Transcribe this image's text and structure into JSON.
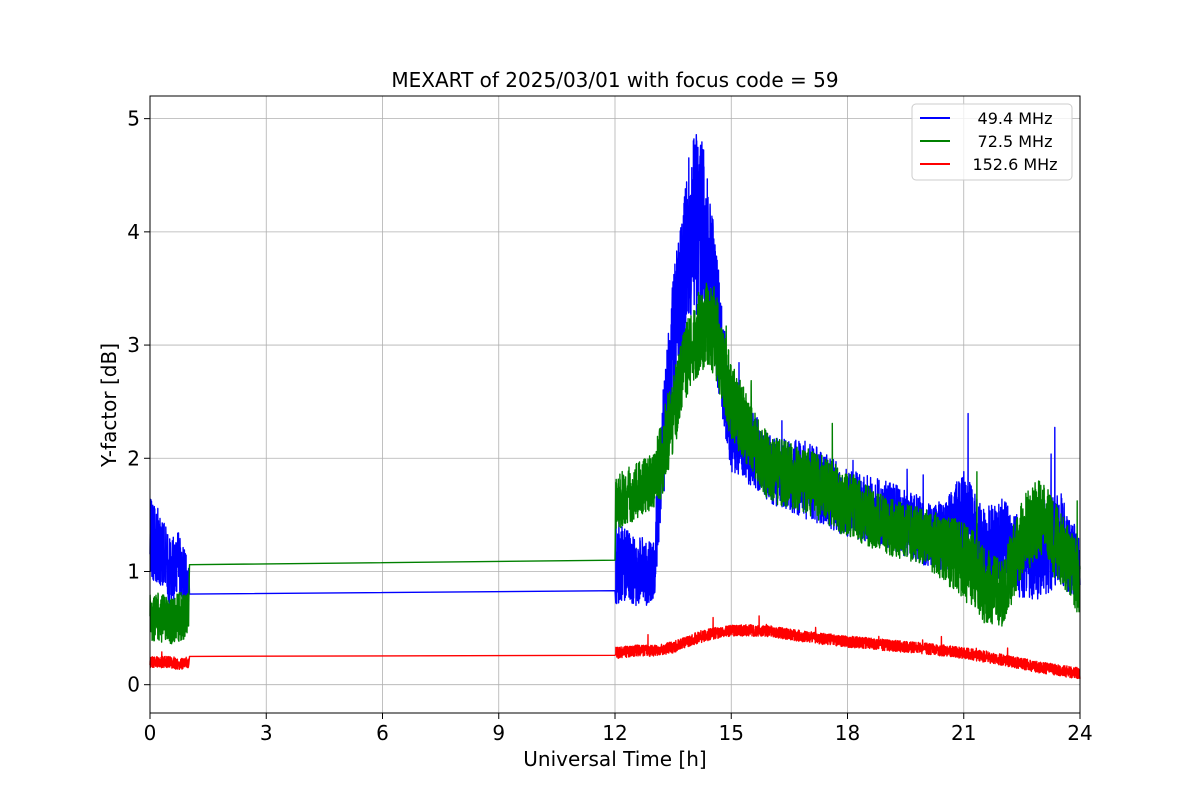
{
  "chart_data": {
    "type": "line",
    "title": "MEXART of 2025/03/01 with focus code = 59",
    "xlabel": "Universal Time [h]",
    "ylabel": "Y-factor [dB]",
    "xlim": [
      0,
      24
    ],
    "ylim": [
      -0.25,
      5.2
    ],
    "xticks": [
      0,
      3,
      6,
      9,
      12,
      15,
      18,
      21,
      24
    ],
    "yticks": [
      0,
      1,
      2,
      3,
      4,
      5
    ],
    "xtick_labels": [
      "0",
      "3",
      "6",
      "9",
      "12",
      "15",
      "18",
      "21",
      "24"
    ],
    "ytick_labels": [
      "0",
      "1",
      "2",
      "3",
      "4",
      "5"
    ],
    "grid": true,
    "legend_position": "top-right",
    "series": [
      {
        "name": " 49.4 MHz",
        "color": "#0000ff",
        "x": [
          0,
          0.25,
          0.5,
          0.75,
          1.0,
          1.02,
          12.0,
          12.02,
          12.5,
          13.0,
          13.2,
          13.5,
          13.8,
          14.0,
          14.3,
          14.6,
          15.0,
          15.5,
          16.0,
          17.0,
          18.0,
          19.0,
          20.0,
          20.5,
          21.0,
          21.5,
          22.0,
          22.5,
          23.0,
          23.5,
          24.0
        ],
        "y": [
          1.3,
          1.2,
          1.0,
          1.1,
          0.85,
          0.8,
          0.83,
          1.1,
          1.0,
          1.0,
          2.0,
          3.0,
          3.7,
          4.1,
          4.0,
          3.3,
          2.2,
          2.1,
          1.9,
          1.8,
          1.6,
          1.5,
          1.35,
          1.3,
          1.5,
          1.2,
          1.3,
          1.1,
          1.2,
          1.3,
          1.0
        ],
        "noise": [
          0.35,
          0.35,
          0.3,
          0.3,
          0.2,
          0,
          0,
          0.4,
          0.3,
          0.3,
          0.5,
          0.6,
          0.7,
          0.8,
          0.8,
          0.6,
          0.35,
          0.35,
          0.3,
          0.35,
          0.3,
          0.3,
          0.3,
          0.3,
          0.4,
          0.35,
          0.35,
          0.35,
          0.45,
          0.4,
          0.3
        ]
      },
      {
        "name": " 72.5 MHz",
        "color": "#008000",
        "x": [
          0,
          0.25,
          0.5,
          0.75,
          1.0,
          1.02,
          12.0,
          12.02,
          12.5,
          13.0,
          13.2,
          13.5,
          13.8,
          14.0,
          14.3,
          14.6,
          15.0,
          15.5,
          16.0,
          17.0,
          18.0,
          19.0,
          20.0,
          20.5,
          21.0,
          21.5,
          22.0,
          22.5,
          23.0,
          23.5,
          24.0
        ],
        "y": [
          0.6,
          0.6,
          0.55,
          0.6,
          0.6,
          1.06,
          1.1,
          1.6,
          1.7,
          1.8,
          2.0,
          2.4,
          2.8,
          3.0,
          3.2,
          3.1,
          2.5,
          2.2,
          1.9,
          1.8,
          1.6,
          1.4,
          1.3,
          1.2,
          1.1,
          0.9,
          0.8,
          1.3,
          1.5,
          1.2,
          0.9
        ],
        "noise": [
          0.22,
          0.22,
          0.2,
          0.22,
          0.2,
          0,
          0,
          0.25,
          0.25,
          0.25,
          0.35,
          0.35,
          0.35,
          0.35,
          0.4,
          0.4,
          0.35,
          0.3,
          0.3,
          0.3,
          0.3,
          0.25,
          0.25,
          0.3,
          0.35,
          0.35,
          0.3,
          0.35,
          0.35,
          0.35,
          0.3
        ]
      },
      {
        "name": "152.6 MHz",
        "color": "#ff0000",
        "x": [
          0,
          0.25,
          0.5,
          0.75,
          1.0,
          1.02,
          12.0,
          12.02,
          12.5,
          13.0,
          13.5,
          14.0,
          14.5,
          15.0,
          15.5,
          16.0,
          17.0,
          18.0,
          19.0,
          20.0,
          21.0,
          22.0,
          23.0,
          24.0
        ],
        "y": [
          0.2,
          0.2,
          0.2,
          0.18,
          0.2,
          0.25,
          0.26,
          0.28,
          0.3,
          0.3,
          0.33,
          0.4,
          0.45,
          0.48,
          0.48,
          0.47,
          0.42,
          0.38,
          0.35,
          0.32,
          0.28,
          0.22,
          0.15,
          0.1
        ],
        "noise": [
          0.05,
          0.05,
          0.05,
          0.05,
          0.05,
          0,
          0,
          0.05,
          0.05,
          0.05,
          0.05,
          0.05,
          0.05,
          0.05,
          0.05,
          0.05,
          0.05,
          0.05,
          0.05,
          0.05,
          0.05,
          0.05,
          0.05,
          0.05
        ]
      }
    ]
  }
}
